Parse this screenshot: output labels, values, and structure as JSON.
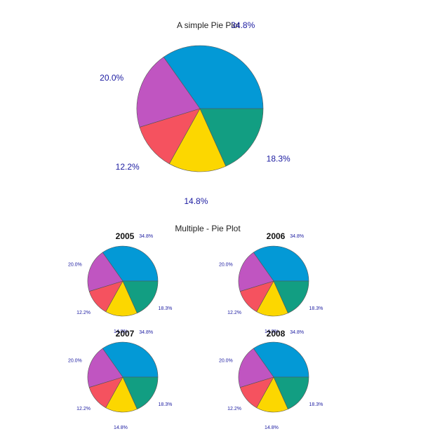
{
  "colors": [
    "#0399d6",
    "#f04c88",
    "#f5d70c",
    "#129e82",
    "#c055c1"
  ],
  "chart_data": [
    {
      "type": "pie",
      "title": "A simple Pie Plot",
      "slices": [
        {
          "value": 34.8,
          "label": "34.8%",
          "color": "#0399d6"
        },
        {
          "value": 20.0,
          "label": "20.0%",
          "color": "#c055c1"
        },
        {
          "value": 12.2,
          "label": "12.2%",
          "color": "#f5525f"
        },
        {
          "value": 14.8,
          "label": "14.8%",
          "color": "#fcd700"
        },
        {
          "value": 18.3,
          "label": "18.3%",
          "color": "#129e82"
        }
      ]
    },
    {
      "type": "pie",
      "title": "Multiple - Pie Plot",
      "subplots": [
        {
          "title": "2005",
          "slices": [
            {
              "value": 34.8,
              "label": "34.8%",
              "color": "#0399d6"
            },
            {
              "value": 20.0,
              "label": "20.0%",
              "color": "#c055c1"
            },
            {
              "value": 12.2,
              "label": "12.2%",
              "color": "#f5525f"
            },
            {
              "value": 14.8,
              "label": "14.8%",
              "color": "#fcd700"
            },
            {
              "value": 18.3,
              "label": "18.3%",
              "color": "#129e82"
            }
          ]
        },
        {
          "title": "2006",
          "slices": [
            {
              "value": 34.8,
              "label": "34.8%",
              "color": "#0399d6"
            },
            {
              "value": 20.0,
              "label": "20.0%",
              "color": "#c055c1"
            },
            {
              "value": 12.2,
              "label": "12.2%",
              "color": "#f5525f"
            },
            {
              "value": 14.8,
              "label": "14.8%",
              "color": "#fcd700"
            },
            {
              "value": 18.3,
              "label": "18.3%",
              "color": "#129e82"
            }
          ]
        },
        {
          "title": "2007",
          "slices": [
            {
              "value": 34.8,
              "label": "34.8%",
              "color": "#0399d6"
            },
            {
              "value": 20.0,
              "label": "20.0%",
              "color": "#c055c1"
            },
            {
              "value": 12.2,
              "label": "12.2%",
              "color": "#f5525f"
            },
            {
              "value": 14.8,
              "label": "14.8%",
              "color": "#fcd700"
            },
            {
              "value": 18.3,
              "label": "18.3%",
              "color": "#129e82"
            }
          ]
        },
        {
          "title": "2008",
          "slices": [
            {
              "value": 34.8,
              "label": "34.8%",
              "color": "#0399d6"
            },
            {
              "value": 20.0,
              "label": "20.0%",
              "color": "#c055c1"
            },
            {
              "value": 12.2,
              "label": "12.2%",
              "color": "#f5525f"
            },
            {
              "value": 14.8,
              "label": "14.8%",
              "color": "#fcd700"
            },
            {
              "value": 18.3,
              "label": "18.3%",
              "color": "#129e82"
            }
          ]
        }
      ]
    }
  ]
}
